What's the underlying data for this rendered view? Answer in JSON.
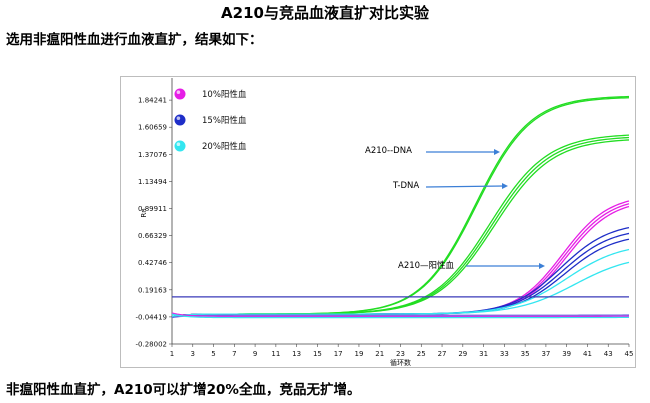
{
  "page": {
    "title": "A210与竞品血液直扩对比实验",
    "intro": "选用非瘟阳性血进行血液直扩，结果如下：",
    "footer": "非瘟阳性血直扩，A210可以扩增20%全血，竞品无扩增。"
  },
  "chart_data": {
    "type": "line",
    "title": "",
    "xlabel": "循环数",
    "ylabel": "Rn",
    "xlim": [
      1,
      45
    ],
    "ylim": [
      -0.28002,
      2.0
    ],
    "xticks": [
      1,
      3,
      5,
      7,
      9,
      11,
      13,
      15,
      17,
      19,
      21,
      23,
      25,
      27,
      29,
      31,
      33,
      35,
      37,
      39,
      41,
      43,
      45
    ],
    "yticks": [
      -0.28002,
      -0.04419,
      0.19163,
      0.42746,
      0.66329,
      0.89911,
      1.13494,
      1.37076,
      1.60659,
      1.84241
    ],
    "ytick_labels": [
      "-0.28002",
      "-0.04419",
      "0.19163",
      "0.42746",
      "0.66329",
      "0.89911",
      "1.13494",
      "1.37076",
      "1.60659",
      "1.84241"
    ],
    "legend": [
      {
        "label": "10%阳性血",
        "color": "#e61ee6"
      },
      {
        "label": "15%阳性血",
        "color": "#1e2ec8"
      },
      {
        "label": "20%阳性血",
        "color": "#33e6f0"
      }
    ],
    "threshold": 0.13,
    "annotations": [
      {
        "text": "A210--DNA",
        "at": [
          30,
          1.5
        ]
      },
      {
        "text": "T-DNA",
        "at": [
          31.5,
          1.22
        ]
      },
      {
        "text": "A210—阳性血",
        "at": [
          37,
          0.49
        ]
      }
    ],
    "series": [
      {
        "color": "#22dd22",
        "min": -0.02,
        "max": 1.88,
        "ct": 30.2,
        "k": 0.38
      },
      {
        "color": "#22dd22",
        "min": -0.02,
        "max": 1.87,
        "ct": 30.3,
        "k": 0.38
      },
      {
        "color": "#22dd22",
        "min": -0.02,
        "max": 1.55,
        "ct": 31.6,
        "k": 0.36
      },
      {
        "color": "#22dd22",
        "min": -0.02,
        "max": 1.53,
        "ct": 31.8,
        "k": 0.36
      },
      {
        "color": "#22dd22",
        "min": -0.02,
        "max": 1.51,
        "ct": 32.0,
        "k": 0.36
      },
      {
        "color": "#e61ee6",
        "min": -0.02,
        "max": 1.02,
        "ct": 38.6,
        "k": 0.45
      },
      {
        "color": "#e61ee6",
        "min": -0.02,
        "max": 1.0,
        "ct": 38.8,
        "k": 0.45
      },
      {
        "color": "#e61ee6",
        "min": -0.02,
        "max": 0.98,
        "ct": 39.0,
        "k": 0.45
      },
      {
        "color": "#1e2ec8",
        "min": -0.02,
        "max": 0.78,
        "ct": 38.4,
        "k": 0.42
      },
      {
        "color": "#1e2ec8",
        "min": -0.02,
        "max": 0.73,
        "ct": 38.6,
        "k": 0.42
      },
      {
        "color": "#1e2ec8",
        "min": -0.02,
        "max": 0.68,
        "ct": 38.8,
        "k": 0.42
      },
      {
        "color": "#33e6f0",
        "min": -0.02,
        "max": 0.6,
        "ct": 39.0,
        "k": 0.38
      },
      {
        "color": "#33e6f0",
        "min": -0.02,
        "max": 0.5,
        "ct": 39.8,
        "k": 0.36
      },
      {
        "color": "#6a6ae0",
        "min": -0.03,
        "max": -0.02,
        "ct": 50,
        "k": 0.3
      },
      {
        "color": "#e61ee6",
        "min": -0.04,
        "max": -0.03,
        "ct": 50,
        "k": 0.3
      },
      {
        "color": "#33e6f0",
        "min": -0.05,
        "max": -0.04,
        "ct": 50,
        "k": 0.3
      }
    ]
  }
}
